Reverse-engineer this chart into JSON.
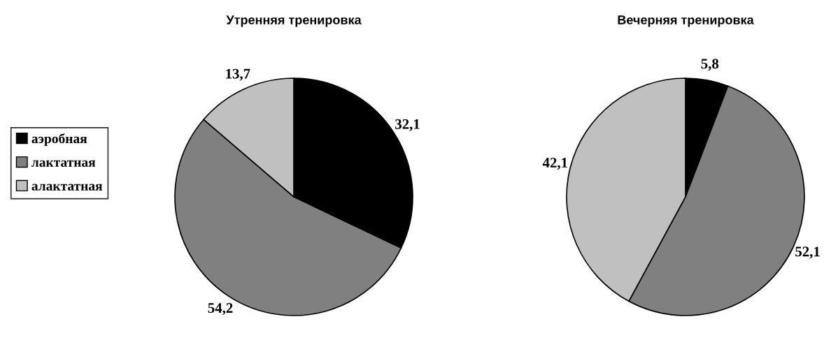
{
  "chart_data": [
    {
      "type": "pie",
      "title": "Утренняя тренировка",
      "categories": [
        "аэробная",
        "лактатная",
        "алактатная"
      ],
      "values": [
        32.1,
        54.2,
        13.7
      ],
      "colors": [
        "#000000",
        "#808080",
        "#c0c0c0"
      ],
      "value_labels": [
        "32,1",
        "54,2",
        "13,7"
      ],
      "legend": "left"
    },
    {
      "type": "pie",
      "title": "Вечерняя тренировка",
      "categories": [
        null,
        null,
        null
      ],
      "values": [
        5.8,
        52.1,
        42.1
      ],
      "colors": [
        "#000000",
        "#808080",
        "#c0c0c0"
      ],
      "value_labels": [
        "5,8",
        "52,1",
        "42,1"
      ],
      "legend": false
    }
  ]
}
